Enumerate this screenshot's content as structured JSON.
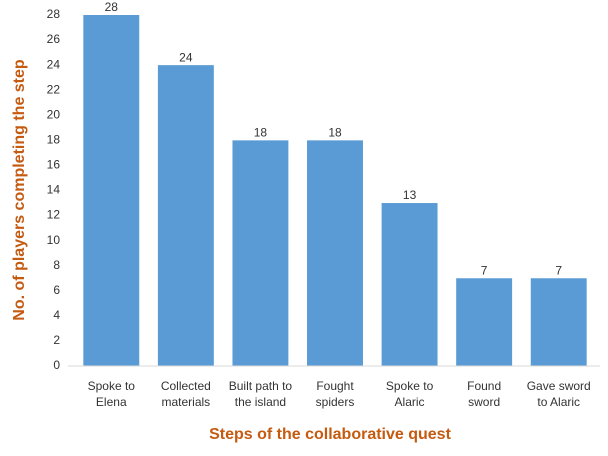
{
  "chart_data": {
    "type": "bar",
    "categories": [
      "Spoke to\nElena",
      "Collected\nmaterials",
      "Built path to\nthe island",
      "Fought\nspiders",
      "Spoke to\nAlaric",
      "Found\nsword",
      "Gave sword\nto Alaric"
    ],
    "values": [
      28,
      24,
      18,
      18,
      13,
      7,
      7
    ],
    "color": "#5b9bd5",
    "x_label": "Steps of the collaborative quest",
    "y_label": "No. of players completing the step",
    "ylim": [
      0,
      28
    ],
    "yticks": [
      0,
      2,
      4,
      6,
      8,
      10,
      12,
      14,
      16,
      18,
      20,
      22,
      24,
      26,
      28
    ],
    "grid": false
  }
}
